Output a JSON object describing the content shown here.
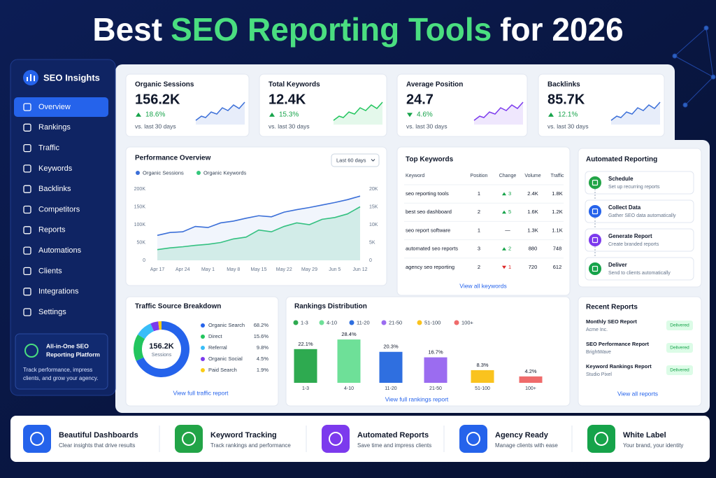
{
  "header": {
    "title_parts": [
      "Best",
      "SEO Reporting Tools",
      "for 2026"
    ]
  },
  "sidebar": {
    "brand": "SEO Insights",
    "active": 0,
    "items": [
      "Overview",
      "Rankings",
      "Traffic",
      "Keywords",
      "Backlinks",
      "Competitors",
      "Reports",
      "Automations",
      "Clients",
      "Integrations",
      "Settings"
    ],
    "promo": {
      "title_lines": [
        "All-in-One SEO",
        "Reporting Platform"
      ],
      "text_lines": [
        "Track performance, impress",
        "clients, and grow your agency."
      ]
    }
  },
  "kpis": [
    {
      "label": "Organic Sessions",
      "value": "156.2K",
      "change": "18.6%",
      "direction": "up",
      "note": "vs. last 30 days"
    },
    {
      "label": "Total Keywords",
      "value": "12.4K",
      "change": "15.3%",
      "direction": "up",
      "note": "vs. last 30 days"
    },
    {
      "label": "Average Position",
      "value": "24.7",
      "change": "4.6%",
      "direction": "down",
      "note": "vs. last 30 days"
    },
    {
      "label": "Backlinks",
      "value": "85.7K",
      "change": "12.1%",
      "direction": "up",
      "note": "vs. last 30 days"
    }
  ],
  "perf": {
    "title": "Performance Overview",
    "range": "Last 60 days",
    "chart": {
      "type": "line",
      "categories": [
        "Apr 17",
        null,
        "Apr 24",
        null,
        "May 1",
        null,
        "May 8",
        null,
        "May 15",
        null,
        "May 22",
        null,
        "May 29",
        null,
        "Jun 5",
        null,
        "Jun 12"
      ],
      "series": [
        {
          "name": "Organic Sessions",
          "color": "#3b6fd8",
          "values": [
            70000,
            78000,
            80000,
            95000,
            92000,
            105000,
            110000,
            118000,
            125000,
            122000,
            135000,
            142000,
            148000,
            155000,
            162000,
            170000,
            180000
          ]
        },
        {
          "name": "Organic Keywords",
          "color": "#34c77b",
          "axis": "y2",
          "values": [
            3000,
            3500,
            3800,
            4200,
            4500,
            5000,
            6000,
            6500,
            8500,
            8000,
            9500,
            10500,
            10000,
            11500,
            12000,
            13000,
            15000
          ]
        }
      ],
      "ylim": [
        0,
        200000
      ],
      "yticks": [
        0,
        {
          "value": 50000,
          "label": "50K"
        },
        {
          "value": 100000,
          "label": "100K"
        },
        {
          "value": 150000,
          "label": "150K"
        },
        {
          "value": 200000,
          "label": "200K"
        }
      ],
      "y2lim": [
        0,
        20000
      ],
      "y2ticks": [
        0,
        {
          "value": 5000,
          "label": "5K"
        },
        {
          "value": 10000,
          "label": "10K"
        },
        {
          "value": 15000,
          "label": "15K"
        },
        {
          "value": 20000,
          "label": "20K"
        }
      ],
      "grid": false
    }
  },
  "keywords": {
    "title": "Top Keywords",
    "headers": [
      "Keyword",
      "Position",
      "Change",
      "Volume",
      "Traffic"
    ],
    "rows": [
      {
        "keyword": "seo reporting tools",
        "position": 1,
        "change": 3,
        "trend": "up",
        "volume": "2.4K",
        "traffic": "1.8K"
      },
      {
        "keyword": "best seo dashboard",
        "position": 2,
        "change": 5,
        "trend": "up",
        "volume": "1.6K",
        "traffic": "1.2K"
      },
      {
        "keyword": "seo report software",
        "position": 1,
        "change": "—",
        "volume": "1.3K",
        "traffic": "1.1K"
      },
      {
        "keyword": "automated seo reports",
        "position": 3,
        "change": 2,
        "trend": "up",
        "volume": "880",
        "traffic": "748"
      },
      {
        "keyword": "agency seo reporting",
        "position": 2,
        "change": 1,
        "trend": "down",
        "volume": "720",
        "traffic": "612"
      }
    ],
    "link": "View all keywords"
  },
  "automation": {
    "title": "Automated Reporting",
    "steps": [
      {
        "title": "Schedule",
        "text": "Set up recurring reports"
      },
      {
        "title": "Collect Data",
        "text": "Gather SEO data automatically"
      },
      {
        "title": "Generate Report",
        "text": "Create branded reports"
      },
      {
        "title": "Deliver",
        "text": "Send to clients automatically"
      }
    ]
  },
  "traffic": {
    "title": "Traffic Source Breakdown",
    "center_value": "156.2K",
    "center_label": "Sessions",
    "chart": {
      "type": "pie",
      "categories": [
        "Organic Search",
        "Direct",
        "Referral",
        "Organic Social",
        "Paid Search"
      ],
      "values": [
        68.2,
        15.6,
        9.8,
        4.5,
        1.9
      ],
      "value_labels": [
        "68.2%",
        "15.6%",
        "9.8%",
        "4.5%",
        "1.9%"
      ],
      "colors": [
        "#2563eb",
        "#22c55e",
        "#38bdf8",
        "#7c3aed",
        "#facc15"
      ]
    },
    "link": "View full traffic report"
  },
  "rankings": {
    "title": "Rankings Distribution",
    "chart": {
      "type": "bar",
      "categories": [
        "1-3",
        "4-10",
        "11-20",
        "21-50",
        "51-100",
        "100+"
      ],
      "values": [
        22.1,
        28.4,
        20.3,
        16.7,
        8.3,
        4.2
      ],
      "value_labels": [
        "22.1%",
        "28.4%",
        "20.3%",
        "16.7%",
        "8.3%",
        "4.2%"
      ],
      "colors": [
        "#2eaa50",
        "#6ee098",
        "#2f6fe0",
        "#9b6cf0",
        "#fac31e",
        "#ef6b6b"
      ]
    },
    "link": "View full rankings report"
  },
  "recent": {
    "title": "Recent Reports",
    "items": [
      {
        "title": "Monthly SEO Report",
        "client": "Acme Inc.",
        "status": "Delivered"
      },
      {
        "title": "SEO Performance Report",
        "client": "BrightWave",
        "status": "Delivered"
      },
      {
        "title": "Keyword Rankings Report",
        "client": "Studio Pixel",
        "status": "Delivered"
      }
    ],
    "link": "View all reports"
  },
  "features": [
    {
      "title": "Beautiful Dashboards",
      "text": "Clear insights that drive results"
    },
    {
      "title": "Keyword Tracking",
      "text": "Track rankings and performance"
    },
    {
      "title": "Automated Reports",
      "text": "Save time and impress clients"
    },
    {
      "title": "Agency Ready",
      "text": "Manage clients with ease"
    },
    {
      "title": "White Label",
      "text": "Your brand, your identity"
    }
  ]
}
